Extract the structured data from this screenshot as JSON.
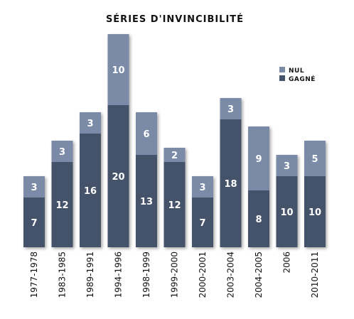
{
  "chart_data": {
    "type": "bar",
    "stacked": true,
    "title": "SÉRIES D'INVINCIBILITÉ",
    "xlabel": "",
    "ylabel": "",
    "ylim": [
      0,
      30
    ],
    "grid": false,
    "legend_position": "top-right",
    "categories": [
      "1977-1978",
      "1983-1985",
      "1989-1991",
      "1994-1996",
      "1998-1999",
      "1999-2000",
      "2000-2001",
      "2003-2004",
      "2004-2005",
      "2006",
      "2010-2011"
    ],
    "series": [
      {
        "name": "GAGNÉ",
        "color": "#44536b",
        "values": [
          7,
          12,
          16,
          20,
          13,
          12,
          7,
          18,
          8,
          10,
          10
        ]
      },
      {
        "name": "NUL",
        "color": "#7a8aa7",
        "values": [
          3,
          3,
          3,
          10,
          6,
          2,
          3,
          3,
          9,
          3,
          5
        ]
      }
    ]
  }
}
